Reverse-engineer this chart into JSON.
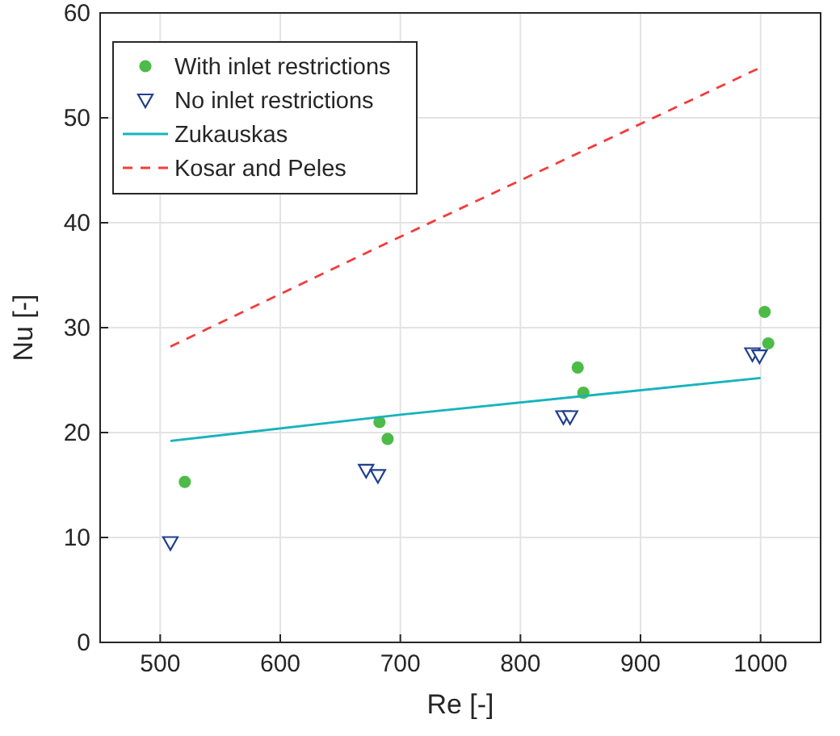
{
  "chart_data": {
    "type": "scatter",
    "xlabel": "Re [-]",
    "ylabel": "Nu [-]",
    "xlim": [
      450,
      1050
    ],
    "ylim": [
      0,
      60
    ],
    "xticks": [
      500,
      600,
      700,
      800,
      900,
      1000
    ],
    "yticks": [
      0,
      10,
      20,
      30,
      40,
      50,
      60
    ],
    "grid": true,
    "legend": "top left",
    "series": [
      {
        "name": "With inlet restrictions",
        "marker": "circle",
        "color": "#4dbb47",
        "x": [
          520.5,
          682.6,
          689.4,
          847.7,
          852.4,
          1003.4,
          1006.4
        ],
        "values": [
          15.3,
          21.0,
          19.4,
          26.2,
          23.8,
          31.5,
          28.5
        ]
      },
      {
        "name": "No inlet restrictions",
        "marker": "triangle",
        "color": "#1f3f8f",
        "x": [
          508.5,
          671.5,
          681.3,
          835.8,
          841.3,
          993.2,
          999.1
        ],
        "values": [
          9.5,
          16.4,
          15.9,
          21.5,
          21.5,
          27.5,
          27.3
        ]
      },
      {
        "name": "Zukauskas",
        "type": "line",
        "line_style": "solid",
        "color": "#17b3bd",
        "x": [
          508.5,
          700,
          1000
        ],
        "values": [
          19.2,
          21.7,
          25.2
        ]
      },
      {
        "name": "Kosar and Peles",
        "type": "line",
        "line_style": "dashed",
        "color": "#f53b3b",
        "x": [
          508.5,
          687.7,
          1000
        ],
        "values": [
          28.2,
          38.0,
          54.8
        ]
      }
    ]
  }
}
